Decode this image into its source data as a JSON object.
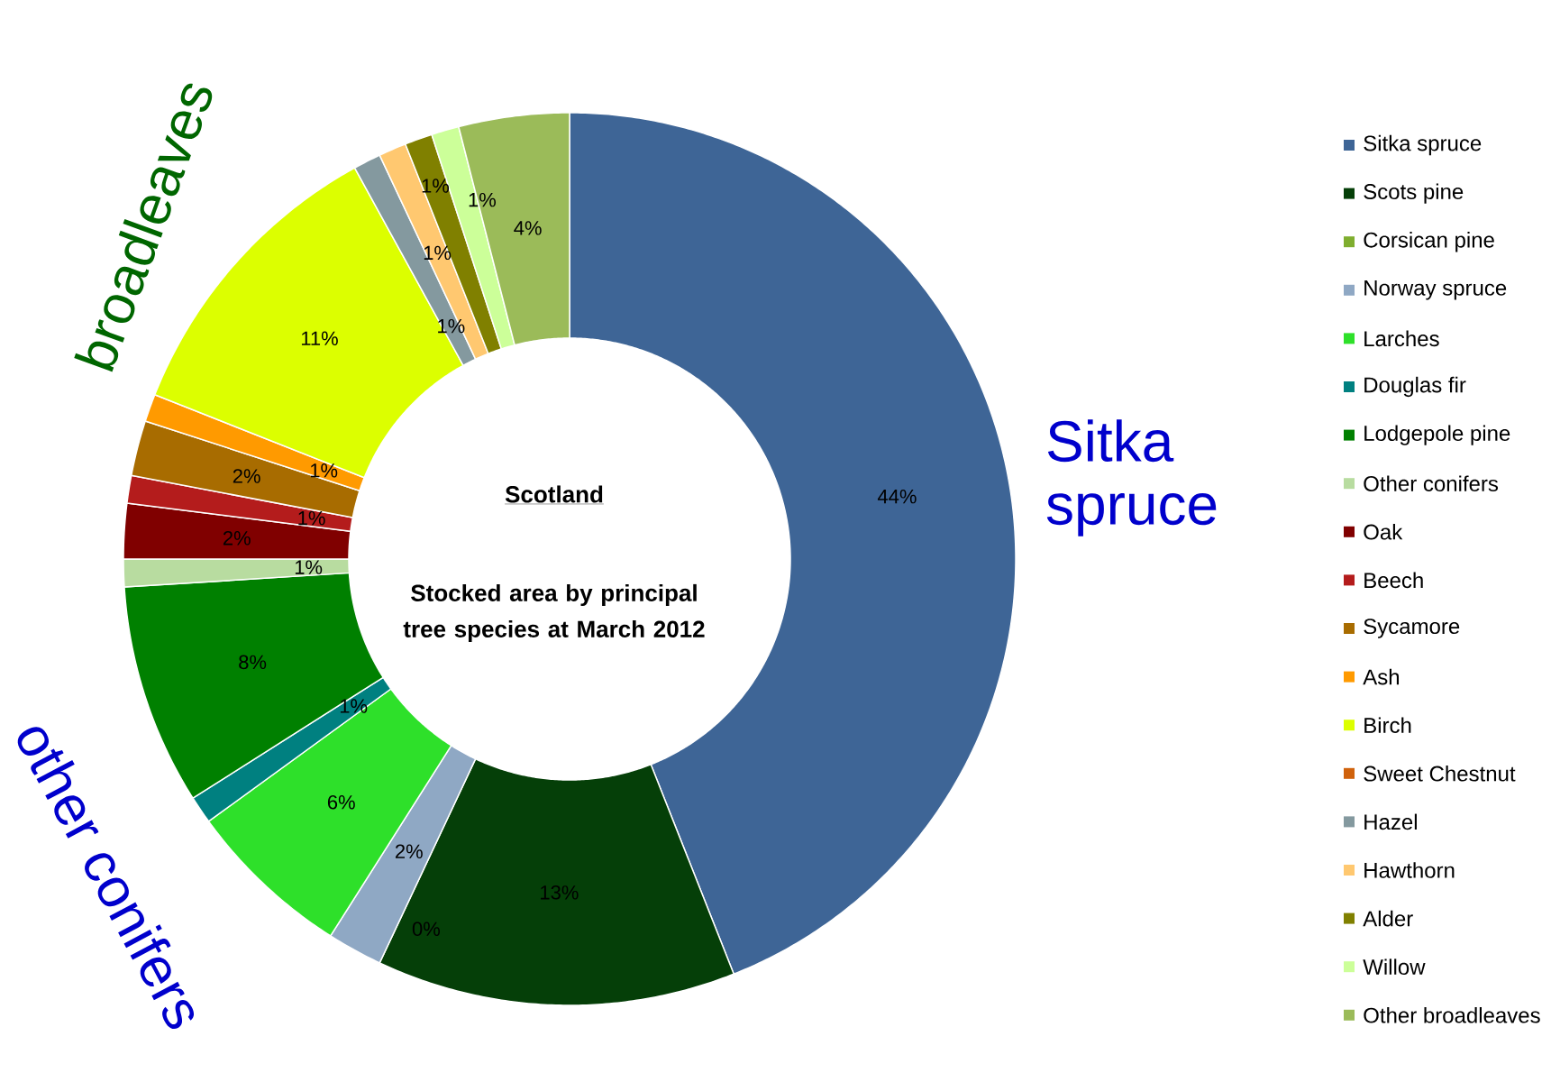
{
  "chart_data": {
    "type": "donut",
    "title": "Scotland",
    "subtitle": "Stocked area by principal tree species at March 2012",
    "categories": [
      "Sitka spruce",
      "Scots pine",
      "Corsican pine",
      "Norway spruce",
      "Larches",
      "Douglas fir",
      "Lodgepole pine",
      "Other conifers",
      "Oak",
      "Beech",
      "Sycamore",
      "Ash",
      "Birch",
      "Sweet Chestnut",
      "Hazel",
      "Hawthorn",
      "Alder",
      "Willow",
      "Other broadleaves"
    ],
    "values": [
      44,
      13,
      0,
      2,
      6,
      1,
      8,
      1,
      2,
      1,
      2,
      1,
      11,
      0,
      1,
      1,
      1,
      1,
      4
    ],
    "value_labels": [
      "44%",
      "13%",
      "0%",
      "2%",
      "6%",
      "1%",
      "8%",
      "1%",
      "2%",
      "1%",
      "2%",
      "1%",
      "11%",
      null,
      "1%",
      "1%",
      "1%",
      "1%",
      "4%"
    ],
    "colors": [
      "#3e6596",
      "#053f08",
      "#7fae2f",
      "#8fa8c4",
      "#2ee02a",
      "#008080",
      "#008000",
      "#b8dca0",
      "#800000",
      "#b41c1c",
      "#a86c00",
      "#ff9a00",
      "#dcff00",
      "#d0620c",
      "#84999f",
      "#ffc870",
      "#808000",
      "#ccff99",
      "#9bbb59"
    ],
    "annotations": [
      "Sitka spruce",
      "broadleaves",
      "other conifers"
    ],
    "legend": "right"
  }
}
